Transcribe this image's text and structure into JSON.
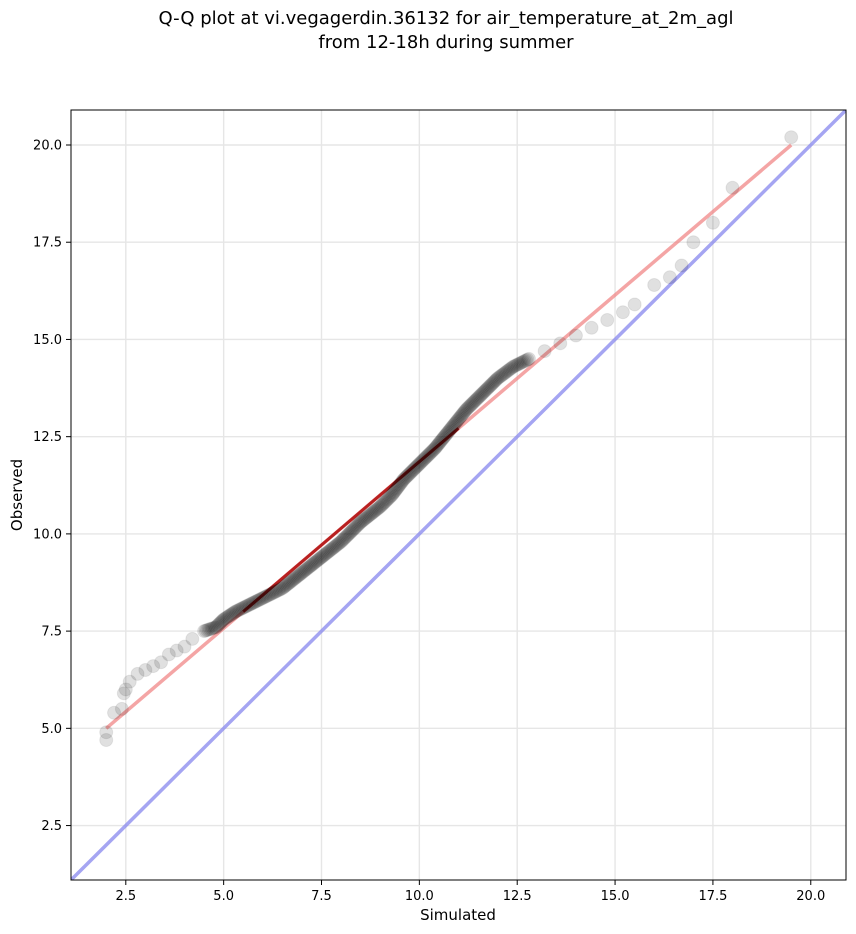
{
  "chart_data": {
    "type": "scatter",
    "title": [
      "Q-Q plot at vi.vegagerdin.36132 for air_temperature_at_2m_agl",
      "from 12-18h during summer"
    ],
    "xlabel": "Simulated",
    "ylabel": "Observed",
    "xlim": [
      1.1,
      20.9
    ],
    "ylim": [
      1.1,
      20.9
    ],
    "xticks": [
      2.5,
      5.0,
      7.5,
      10.0,
      12.5,
      15.0,
      17.5,
      20.0
    ],
    "yticks": [
      2.5,
      5.0,
      7.5,
      10.0,
      12.5,
      15.0,
      17.5,
      20.0
    ],
    "xtick_labels": [
      "2.5",
      "5.0",
      "7.5",
      "10.0",
      "12.5",
      "15.0",
      "17.5",
      "20.0"
    ],
    "ytick_labels": [
      "2.5",
      "5.0",
      "7.5",
      "10.0",
      "12.5",
      "15.0",
      "17.5",
      "20.0"
    ],
    "grid": true,
    "colors": {
      "points": "#000000",
      "fit_line": "#f08080",
      "identity_line": "#8888ee",
      "center_line": "#aa0000"
    },
    "identity_line": {
      "x": [
        1.1,
        20.9
      ],
      "y": [
        1.1,
        20.9
      ]
    },
    "fit_line": {
      "x": [
        2.0,
        19.5
      ],
      "y": [
        5.0,
        20.0
      ]
    },
    "quantiles": {
      "x": [
        2.0,
        2.0,
        2.2,
        2.4,
        2.45,
        2.5,
        2.6,
        2.8,
        3.0,
        3.2,
        3.4,
        3.6,
        3.8,
        4.0,
        4.2,
        4.5,
        4.8,
        5.0,
        5.3,
        5.7,
        6.1,
        6.5,
        7.0,
        7.5,
        8.0,
        8.5,
        9.0,
        9.3,
        9.6,
        10.0,
        10.4,
        10.8,
        11.2,
        11.6,
        12.0,
        12.4,
        12.8,
        13.2,
        13.6,
        14.0,
        14.4,
        14.8,
        15.2,
        15.5,
        16.0,
        16.4,
        16.7,
        17.0,
        17.5,
        18.0,
        19.5
      ],
      "y": [
        4.7,
        4.9,
        5.4,
        5.5,
        5.9,
        6.0,
        6.2,
        6.4,
        6.5,
        6.6,
        6.7,
        6.9,
        7.0,
        7.1,
        7.3,
        7.5,
        7.6,
        7.8,
        8.0,
        8.2,
        8.4,
        8.6,
        9.0,
        9.4,
        9.8,
        10.3,
        10.7,
        11.0,
        11.4,
        11.8,
        12.2,
        12.7,
        13.2,
        13.6,
        14.0,
        14.3,
        14.5,
        14.7,
        14.9,
        15.1,
        15.3,
        15.5,
        15.7,
        15.9,
        16.4,
        16.6,
        16.9,
        17.5,
        18.0,
        18.9,
        20.2
      ]
    }
  }
}
